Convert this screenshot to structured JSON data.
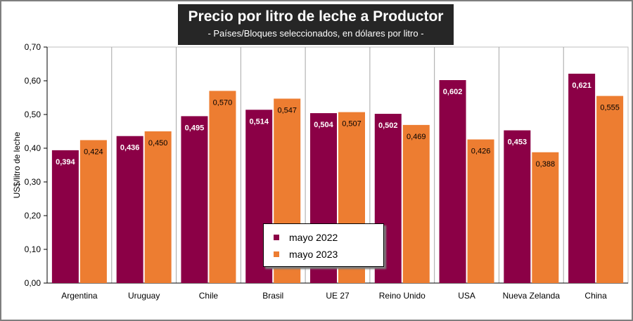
{
  "title": "Precio por litro de leche a Productor",
  "subtitle": "- Países/Bloques seleccionados, en dólares por litro -",
  "chart_data": {
    "type": "bar",
    "title": "Precio por litro de leche a Productor",
    "subtitle": "- Países/Bloques seleccionados, en dólares por litro -",
    "ylabel": "US$/litro de leche",
    "xlabel": "",
    "ylim": [
      0,
      0.7
    ],
    "yticks": [
      "0,00",
      "0,10",
      "0,20",
      "0,30",
      "0,40",
      "0,50",
      "0,60",
      "0,70"
    ],
    "grid": "vertical separators between categories",
    "legend_position": "bottom-center",
    "categories": [
      "Argentina",
      "Uruguay",
      "Chile",
      "Brasil",
      "UE 27",
      "Reino Unido",
      "USA",
      "Nueva Zelanda",
      "China"
    ],
    "series": [
      {
        "name": "mayo 2022",
        "color": "#8b0046",
        "values": [
          0.394,
          0.436,
          0.495,
          0.514,
          0.504,
          0.502,
          0.602,
          0.453,
          0.621
        ],
        "labels": [
          "0,394",
          "0,436",
          "0,495",
          "0,514",
          "0,504",
          "0,502",
          "0,602",
          "0,453",
          "0,621"
        ]
      },
      {
        "name": "mayo 2023",
        "color": "#ed7d31",
        "values": [
          0.424,
          0.45,
          0.57,
          0.547,
          0.507,
          0.469,
          0.426,
          0.388,
          0.555
        ],
        "labels": [
          "0,424",
          "0,450",
          "0,570",
          "0,547",
          "0,507",
          "0,469",
          "0,426",
          "0,388",
          "0,555"
        ]
      }
    ]
  }
}
